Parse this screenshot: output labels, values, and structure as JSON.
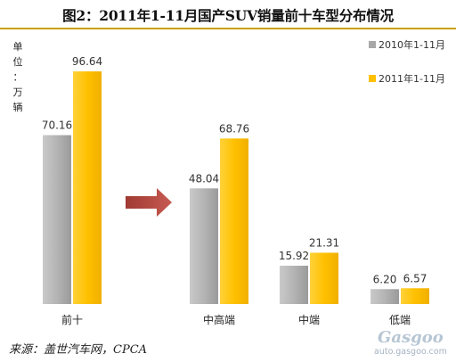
{
  "title": "图2：2011年1-11月国产SUV销量前十车型分布情况",
  "unit_label": [
    "单",
    "位",
    "：",
    "万",
    "辆"
  ],
  "source": "来源：盖世汽车网，CPCA",
  "watermark": {
    "brand": "Gasgoo",
    "site": "auto.gasgoo.com"
  },
  "colors": {
    "series_2010": "#a8a8a8",
    "series_2011": "#ffc000",
    "arrow": "#b0463f"
  },
  "chart_data": {
    "type": "bar",
    "categories": [
      "前十",
      "中高端",
      "中端",
      "低端"
    ],
    "series": [
      {
        "name": "2010年1-11月",
        "values": [
          70.16,
          48.04,
          15.92,
          6.2
        ],
        "labels": [
          "70.16",
          "48.04",
          "15.92",
          "6.20"
        ]
      },
      {
        "name": "2011年1-11月",
        "values": [
          96.64,
          68.76,
          21.31,
          6.57
        ],
        "labels": [
          "96.64",
          "68.76",
          "21.31",
          "6.57"
        ]
      }
    ],
    "legend_position": "top-right",
    "grid": false,
    "ylim": [
      0,
      100
    ]
  }
}
